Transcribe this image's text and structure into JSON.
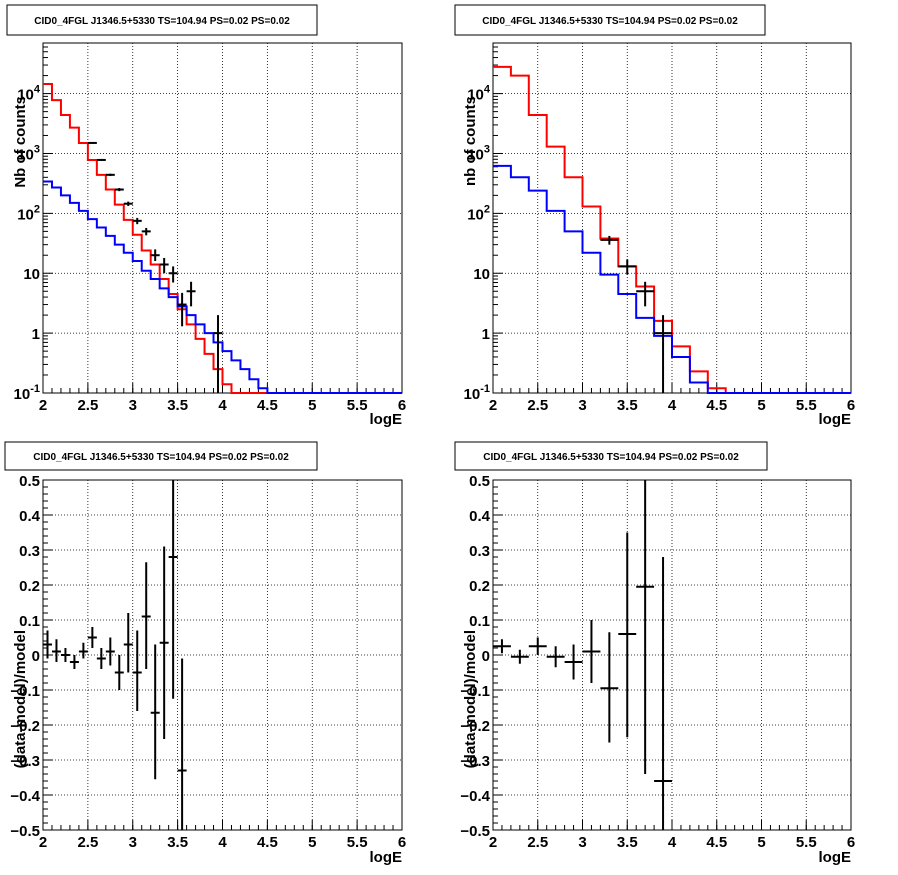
{
  "chart_data": [
    {
      "type": "line",
      "title": "CID0_4FGL J1346.5+5330 TS=104.94 PS=0.02 PS=0.02",
      "xlabel": "logE",
      "ylabel": "Nb of counts",
      "xlim": [
        2,
        6
      ],
      "ylim": [
        0.1,
        70000
      ],
      "yscale": "log",
      "grid": true,
      "x_ticks": [
        "2",
        "2.5",
        "3",
        "3.5",
        "4",
        "4.5",
        "5",
        "5.5",
        "6"
      ],
      "y_ticks": [
        "10^{-1}",
        "1",
        "10",
        "10^{2}",
        "10^{3}",
        "10^{4}"
      ],
      "bin_edges": [
        2.0,
        2.1,
        2.2,
        2.3,
        2.4,
        2.5,
        2.6,
        2.7,
        2.8,
        2.9,
        3.0,
        3.1,
        3.2,
        3.3,
        3.4,
        3.5,
        3.6,
        3.7,
        3.8,
        3.9,
        4.0,
        4.1,
        4.2,
        4.3,
        4.4,
        4.5,
        4.6,
        4.7,
        4.8,
        4.9,
        5.0,
        5.1,
        5.2,
        5.3,
        5.4,
        5.5,
        5.6,
        5.7,
        5.8,
        5.9,
        6.0
      ],
      "series": [
        {
          "color": "#ff0000",
          "style": "step",
          "values": [
            14500,
            7800,
            4400,
            2700,
            1500,
            780,
            440,
            250,
            140,
            78,
            44,
            24,
            14,
            8,
            4.5,
            2.5,
            1.4,
            0.8,
            0.45,
            0.25,
            0.14,
            0.1,
            0.1,
            0.1,
            0.1,
            0.1,
            0.1,
            0.1,
            0.1,
            0.1,
            0.1,
            0.1,
            0.1,
            0.1,
            0.1,
            0.1,
            0.1,
            0.1,
            0.1,
            0.1
          ]
        },
        {
          "color": "#0000ff",
          "style": "step",
          "values": [
            340,
            270,
            200,
            150,
            110,
            80,
            58,
            42,
            30,
            22,
            16,
            11,
            8,
            5.6,
            4,
            2.8,
            2,
            1.4,
            1,
            0.7,
            0.5,
            0.35,
            0.25,
            0.17,
            0.12,
            0.1,
            0.1,
            0.1,
            0.1,
            0.1,
            0.1,
            0.1,
            0.1,
            0.1,
            0.1,
            0.1,
            0.1,
            0.1,
            0.1,
            0.1
          ]
        }
      ],
      "points": [
        {
          "x": 2.55,
          "y": 1500,
          "ylo": 1460,
          "yhi": 1540
        },
        {
          "x": 2.65,
          "y": 780,
          "ylo": 750,
          "yhi": 810
        },
        {
          "x": 2.75,
          "y": 440,
          "ylo": 420,
          "yhi": 460
        },
        {
          "x": 2.85,
          "y": 250,
          "ylo": 235,
          "yhi": 265
        },
        {
          "x": 2.95,
          "y": 145,
          "ylo": 133,
          "yhi": 157
        },
        {
          "x": 3.05,
          "y": 75,
          "ylo": 66,
          "yhi": 84
        },
        {
          "x": 3.15,
          "y": 50,
          "ylo": 43,
          "yhi": 57
        },
        {
          "x": 3.25,
          "y": 20,
          "ylo": 16,
          "yhi": 25
        },
        {
          "x": 3.35,
          "y": 14,
          "ylo": 10,
          "yhi": 18
        },
        {
          "x": 3.45,
          "y": 10,
          "ylo": 7,
          "yhi": 13
        },
        {
          "x": 3.55,
          "y": 3,
          "ylo": 1.3,
          "yhi": 4.7
        },
        {
          "x": 3.65,
          "y": 5,
          "ylo": 2.8,
          "yhi": 7.2
        },
        {
          "x": 3.95,
          "y": 1,
          "ylo": 0.1,
          "yhi": 2
        }
      ]
    },
    {
      "type": "line",
      "title": "CID0_4FGL J1346.5+5330 TS=104.94 PS=0.02 PS=0.02",
      "xlabel": "logE",
      "ylabel": "nb of counts",
      "xlim": [
        2,
        6
      ],
      "ylim": [
        0.1,
        70000
      ],
      "yscale": "log",
      "grid": true,
      "x_ticks": [
        "2",
        "2.5",
        "3",
        "3.5",
        "4",
        "4.5",
        "5",
        "5.5",
        "6"
      ],
      "y_ticks": [
        "10^{-1}",
        "1",
        "10",
        "10^{2}",
        "10^{3}",
        "10^{4}"
      ],
      "bin_edges": [
        2.0,
        2.2,
        2.4,
        2.6,
        2.8,
        3.0,
        3.2,
        3.4,
        3.6,
        3.8,
        4.0,
        4.2,
        4.4,
        4.6,
        4.8,
        5.0,
        5.2,
        5.4,
        5.6,
        5.8,
        6.0
      ],
      "series": [
        {
          "color": "#ff0000",
          "style": "step",
          "values": [
            28000,
            20000,
            4400,
            1300,
            400,
            130,
            38,
            13,
            6,
            1.6,
            0.6,
            0.23,
            0.12,
            0.1,
            0.1,
            0.1,
            0.1,
            0.1,
            0.1,
            0.1
          ]
        },
        {
          "color": "#0000ff",
          "style": "step",
          "values": [
            620,
            400,
            240,
            110,
            50,
            22,
            9.5,
            4.5,
            1.8,
            0.9,
            0.4,
            0.15,
            0.1,
            0.1,
            0.1,
            0.1,
            0.1,
            0.1,
            0.1,
            0.1
          ]
        }
      ],
      "points": [
        {
          "x": 3.3,
          "y": 36,
          "ylo": 30,
          "yhi": 42
        },
        {
          "x": 3.5,
          "y": 13,
          "ylo": 9.5,
          "yhi": 17
        },
        {
          "x": 3.7,
          "y": 5,
          "ylo": 2.8,
          "yhi": 7.2
        },
        {
          "x": 3.9,
          "y": 1,
          "ylo": 0.1,
          "yhi": 2
        }
      ]
    },
    {
      "type": "scatter",
      "title": "CID0_4FGL J1346.5+5330 TS=104.94 PS=0.02 PS=0.02",
      "xlabel": "logE",
      "ylabel": "(data-model)/model",
      "xlim": [
        2,
        6
      ],
      "ylim": [
        -0.5,
        0.5
      ],
      "grid": true,
      "x_ticks": [
        "2",
        "2.5",
        "3",
        "3.5",
        "4",
        "4.5",
        "5",
        "5.5",
        "6"
      ],
      "y_ticks": [
        "−0.5",
        "−0.4",
        "−0.3",
        "−0.2",
        "−0.1",
        "0",
        "0.1",
        "0.2",
        "0.3",
        "0.4",
        "0.5"
      ],
      "points": [
        {
          "x": 2.05,
          "y": 0.03,
          "ylo": -0.01,
          "yhi": 0.07
        },
        {
          "x": 2.15,
          "y": 0.01,
          "ylo": -0.02,
          "yhi": 0.045
        },
        {
          "x": 2.25,
          "y": 0.0,
          "ylo": -0.02,
          "yhi": 0.02
        },
        {
          "x": 2.35,
          "y": -0.02,
          "ylo": -0.04,
          "yhi": 0.0
        },
        {
          "x": 2.45,
          "y": 0.01,
          "ylo": -0.01,
          "yhi": 0.035
        },
        {
          "x": 2.55,
          "y": 0.05,
          "ylo": 0.02,
          "yhi": 0.08
        },
        {
          "x": 2.65,
          "y": -0.01,
          "ylo": -0.04,
          "yhi": 0.02
        },
        {
          "x": 2.75,
          "y": 0.01,
          "ylo": -0.03,
          "yhi": 0.05
        },
        {
          "x": 2.85,
          "y": -0.05,
          "ylo": -0.1,
          "yhi": 0.0
        },
        {
          "x": 2.95,
          "y": 0.03,
          "ylo": -0.05,
          "yhi": 0.12
        },
        {
          "x": 3.05,
          "y": -0.05,
          "ylo": -0.16,
          "yhi": 0.07
        },
        {
          "x": 3.15,
          "y": 0.11,
          "ylo": -0.04,
          "yhi": 0.265
        },
        {
          "x": 3.25,
          "y": -0.165,
          "ylo": -0.355,
          "yhi": 0.03
        },
        {
          "x": 3.35,
          "y": 0.035,
          "ylo": -0.24,
          "yhi": 0.31
        },
        {
          "x": 3.45,
          "y": 0.28,
          "ylo": -0.125,
          "yhi": 0.5
        },
        {
          "x": 3.55,
          "y": -0.33,
          "ylo": -0.5,
          "yhi": -0.01
        }
      ]
    },
    {
      "type": "scatter",
      "title": "CID0_4FGL J1346.5+5330 TS=104.94 PS=0.02 PS=0.02",
      "xlabel": "logE",
      "ylabel": "(data-model)/model",
      "xlim": [
        2,
        6
      ],
      "ylim": [
        -0.5,
        0.5
      ],
      "grid": true,
      "x_ticks": [
        "2",
        "2.5",
        "3",
        "3.5",
        "4",
        "4.5",
        "5",
        "5.5",
        "6"
      ],
      "y_ticks": [
        "−0.5",
        "−0.4",
        "−0.3",
        "−0.2",
        "−0.1",
        "0",
        "0.1",
        "0.2",
        "0.3",
        "0.4",
        "0.5"
      ],
      "points": [
        {
          "x": 2.1,
          "y": 0.025,
          "ylo": 0.005,
          "yhi": 0.045
        },
        {
          "x": 2.3,
          "y": -0.005,
          "ylo": -0.025,
          "yhi": 0.015
        },
        {
          "x": 2.5,
          "y": 0.025,
          "ylo": 0.0,
          "yhi": 0.05
        },
        {
          "x": 2.7,
          "y": -0.005,
          "ylo": -0.035,
          "yhi": 0.025
        },
        {
          "x": 2.9,
          "y": -0.02,
          "ylo": -0.07,
          "yhi": 0.03
        },
        {
          "x": 3.1,
          "y": 0.01,
          "ylo": -0.08,
          "yhi": 0.1
        },
        {
          "x": 3.3,
          "y": -0.095,
          "ylo": -0.25,
          "yhi": 0.065
        },
        {
          "x": 3.5,
          "y": 0.06,
          "ylo": -0.235,
          "yhi": 0.35
        },
        {
          "x": 3.7,
          "y": 0.195,
          "ylo": -0.34,
          "yhi": 0.5
        },
        {
          "x": 3.9,
          "y": -0.36,
          "ylo": -0.5,
          "yhi": 0.28
        }
      ]
    }
  ]
}
